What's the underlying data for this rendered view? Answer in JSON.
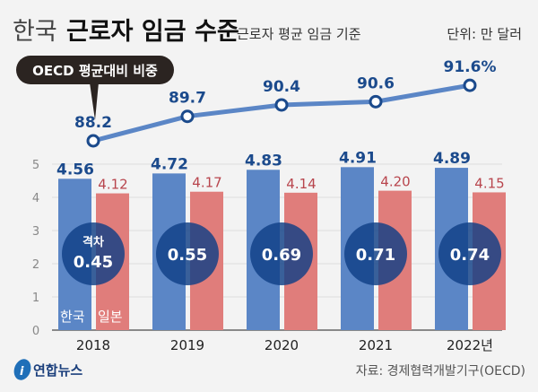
{
  "header": {
    "title_light": "한국",
    "title_bold": "근로자 임금 수준",
    "subtitle": "근로자 평균 임금 기준",
    "unit": "단위: 만 달러"
  },
  "callout": "OECD 평균대비 비중",
  "legend": {
    "korea": "한국",
    "japan": "일본"
  },
  "gap_label": "격차",
  "footer": {
    "logo": "연합뉴스",
    "source": "자료: 경제협력개발기구(OECD)"
  },
  "colors": {
    "korea": "#5b86c6",
    "japan": "#e07d7b",
    "line": "#5b86c6",
    "circle": "#103f86",
    "korea_text": "#1b4a8c",
    "japan_text": "#b8454d"
  },
  "chart_data": {
    "type": "bar",
    "categories": [
      "2018",
      "2019",
      "2020",
      "2021",
      "2022년"
    ],
    "ylim": [
      0,
      5
    ],
    "yticks": [
      "0",
      "1",
      "2",
      "3",
      "4",
      "5"
    ],
    "grid": true,
    "series": [
      {
        "name": "한국",
        "values": [
          4.56,
          4.72,
          4.83,
          4.91,
          4.89
        ],
        "labels": [
          "4.56",
          "4.72",
          "4.83",
          "4.91",
          "4.89"
        ]
      },
      {
        "name": "일본",
        "values": [
          4.12,
          4.17,
          4.14,
          4.2,
          4.15
        ],
        "labels": [
          "4.12",
          "4.17",
          "4.14",
          "4.20",
          "4.15"
        ]
      }
    ],
    "gap": {
      "values": [
        0.45,
        0.55,
        0.69,
        0.71,
        0.74
      ],
      "labels": [
        "0.45",
        "0.55",
        "0.69",
        "0.71",
        "0.74"
      ]
    },
    "line": {
      "name": "OECD 평균대비 비중",
      "values": [
        88.2,
        89.7,
        90.4,
        90.6,
        91.6
      ],
      "labels": [
        "88.2",
        "89.7",
        "90.4",
        "90.6",
        "91.6%"
      ]
    }
  }
}
